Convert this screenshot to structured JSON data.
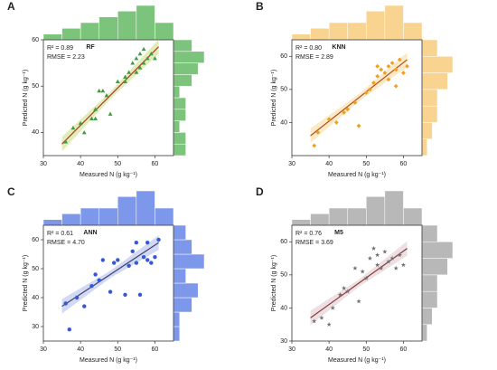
{
  "chart_data": [
    {
      "type": "scatter",
      "label": "A",
      "title": "RF",
      "r2": "R² = 0.89",
      "rmse": "RMSE = 2.23",
      "xlabel": "Measured N (g kg⁻¹)",
      "ylabel": "Predicted N (g kg⁻¹)",
      "color": "#3f9b3f",
      "hist_color": "#7cc47c",
      "line_color": "#b03a2e",
      "band_color": "#d9e8a8",
      "marker": "triangle",
      "x": [
        36,
        38,
        40,
        41,
        43,
        44,
        44,
        45,
        46,
        47,
        48,
        50,
        52,
        52,
        53,
        54,
        55,
        55,
        56,
        56,
        57,
        57,
        58,
        59,
        60
      ],
      "values": [
        38,
        41,
        42,
        40,
        43,
        43,
        45,
        49,
        49,
        48,
        44,
        51,
        51,
        52,
        53,
        55,
        53,
        56,
        54,
        57,
        55,
        58,
        56,
        57,
        56
      ],
      "fit": {
        "x": [
          35,
          61
        ],
        "y": [
          37.5,
          58.5
        ]
      },
      "xlim": [
        30,
        65
      ],
      "xticks": [
        30,
        40,
        50,
        60
      ],
      "ylim": [
        35,
        60
      ],
      "yticks": [
        40,
        50,
        60
      ],
      "top_hist": {
        "bins": [
          30,
          35,
          40,
          45,
          50,
          55,
          60,
          65
        ],
        "counts": [
          1,
          2,
          3,
          4,
          5,
          6,
          3
        ]
      },
      "right_hist": {
        "bins": [
          35,
          37.5,
          40,
          42.5,
          45,
          47.5,
          50,
          52.5,
          55,
          57.5,
          60
        ],
        "counts": [
          2,
          2,
          1,
          2,
          2,
          1,
          3,
          4,
          5,
          3
        ]
      }
    },
    {
      "type": "scatter",
      "label": "B",
      "title": "KNN",
      "r2": "R² = 0.80",
      "rmse": "RMSE = 2.89",
      "xlabel": "Measured N (g kg⁻¹)",
      "ylabel": "Predicted N (g kg⁻¹)",
      "color": "#f0a020",
      "hist_color": "#f8d490",
      "line_color": "#b04a1e",
      "band_color": "#fbe3b8",
      "marker": "diamond",
      "x": [
        36,
        37,
        40,
        42,
        44,
        45,
        47,
        48,
        50,
        51,
        52,
        53,
        53,
        54,
        55,
        56,
        56,
        57,
        58,
        58,
        59,
        60,
        61
      ],
      "values": [
        33,
        37,
        41,
        40,
        43,
        44,
        46,
        39,
        49,
        50,
        52,
        54,
        57,
        56,
        55,
        57,
        53,
        58,
        51,
        56,
        59,
        55,
        57
      ],
      "fit": {
        "x": [
          35,
          61
        ],
        "y": [
          36,
          59
        ]
      },
      "xlim": [
        30,
        65
      ],
      "xticks": [
        30,
        40,
        50,
        60
      ],
      "ylim": [
        30,
        65
      ],
      "yticks": [
        40,
        50,
        60
      ],
      "top_hist": {
        "bins": [
          30,
          35,
          40,
          45,
          50,
          55,
          60,
          65
        ],
        "counts": [
          1,
          2,
          3,
          3,
          5,
          6,
          3
        ]
      },
      "right_hist": {
        "bins": [
          30,
          35,
          40,
          45,
          50,
          55,
          60,
          65
        ],
        "counts": [
          1,
          2,
          3,
          3,
          5,
          6,
          3
        ]
      }
    },
    {
      "type": "scatter",
      "label": "C",
      "title": "ANN",
      "r2": "R² = 0.61",
      "rmse": "RMSE = 4.70",
      "xlabel": "Measured N (g kg⁻¹)",
      "ylabel": "Predicted N (g kg⁻¹)",
      "color": "#3558d6",
      "hist_color": "#7d97ea",
      "line_color": "#444466",
      "band_color": "#c5d0f2",
      "marker": "circle",
      "x": [
        36,
        37,
        39,
        41,
        43,
        44,
        45,
        46,
        48,
        49,
        50,
        52,
        53,
        54,
        55,
        55,
        56,
        57,
        58,
        58,
        59,
        60,
        61
      ],
      "values": [
        38,
        29,
        40,
        37,
        44,
        48,
        46,
        53,
        42,
        52,
        53,
        41,
        51,
        56,
        59,
        52,
        41,
        54,
        59,
        53,
        52,
        54,
        60
      ],
      "fit": {
        "x": [
          35,
          61
        ],
        "y": [
          37,
          59
        ]
      },
      "xlim": [
        30,
        65
      ],
      "xticks": [
        30,
        40,
        50,
        60
      ],
      "ylim": [
        25,
        65
      ],
      "yticks": [
        30,
        40,
        50,
        60
      ],
      "top_hist": {
        "bins": [
          30,
          35,
          40,
          45,
          50,
          55,
          60,
          65
        ],
        "counts": [
          1,
          2,
          3,
          3,
          5,
          6,
          3
        ]
      },
      "right_hist": {
        "bins": [
          25,
          30,
          35,
          40,
          45,
          50,
          55,
          60,
          65
        ],
        "counts": [
          1,
          1,
          3,
          4,
          2,
          5,
          3,
          2
        ]
      }
    },
    {
      "type": "scatter",
      "label": "D",
      "title": "M5",
      "r2": "R² = 0.76",
      "rmse": "RMSE = 3.69",
      "xlabel": "Measured N (g kg⁻¹)",
      "ylabel": "Predicted N (g kg⁻¹)",
      "color": "#707070",
      "hist_color": "#b8b8b8",
      "line_color": "#8b3a3a",
      "band_color": "#e8d8dc",
      "marker": "star",
      "x": [
        36,
        38,
        40,
        41,
        43,
        44,
        45,
        47,
        48,
        49,
        50,
        51,
        52,
        53,
        53,
        54,
        55,
        56,
        57,
        58,
        59,
        60
      ],
      "values": [
        36,
        37,
        35,
        40,
        44,
        46,
        45,
        52,
        42,
        51,
        49,
        55,
        58,
        56,
        53,
        52,
        57,
        54,
        55,
        52,
        56,
        53
      ],
      "fit": {
        "x": [
          35,
          61
        ],
        "y": [
          37,
          58
        ]
      },
      "xlim": [
        30,
        65
      ],
      "xticks": [
        30,
        40,
        50,
        60
      ],
      "ylim": [
        30,
        65
      ],
      "yticks": [
        30,
        40,
        50,
        60
      ],
      "top_hist": {
        "bins": [
          30,
          35,
          40,
          45,
          50,
          55,
          60,
          65
        ],
        "counts": [
          1,
          2,
          3,
          3,
          5,
          6,
          3
        ]
      },
      "right_hist": {
        "bins": [
          30,
          35,
          40,
          45,
          50,
          55,
          60,
          65
        ],
        "counts": [
          1,
          2,
          3,
          3,
          5,
          6,
          3
        ]
      }
    }
  ]
}
